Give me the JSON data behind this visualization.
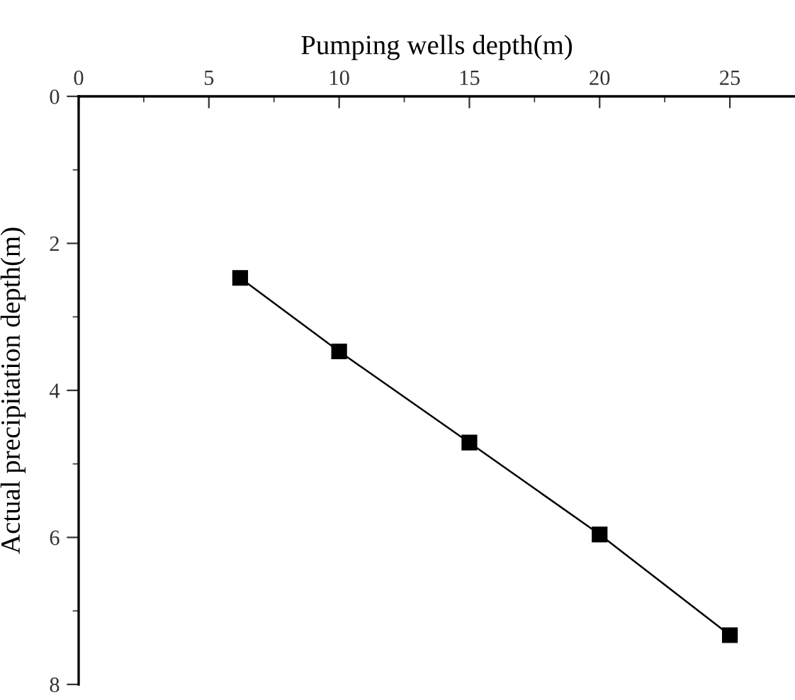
{
  "chart_data": {
    "type": "line",
    "xlabel": "Pumping wells depth(m)",
    "ylabel": "Actual precipitation depth(m)",
    "x": [
      6.2,
      10,
      15,
      20,
      25
    ],
    "series": [
      {
        "color": "#000000",
        "values": [
          2.47,
          3.47,
          4.71,
          5.96,
          7.33
        ]
      }
    ],
    "marker": "square",
    "line_style": "solid",
    "grid": false,
    "xlim": [
      0,
      27.5
    ],
    "ylim": [
      8,
      0
    ],
    "xticks": [
      0,
      {
        "value": 2.5,
        "label": null
      },
      5,
      {
        "value": 7.5,
        "label": null
      },
      10,
      {
        "value": 12.5,
        "label": null
      },
      15,
      {
        "value": 17.5,
        "label": null
      },
      20,
      {
        "value": 22.5,
        "label": null
      },
      25
    ],
    "yticks": [
      0,
      {
        "value": 1,
        "label": null
      },
      2,
      {
        "value": 3,
        "label": null
      },
      4,
      {
        "value": 5,
        "label": null
      },
      6,
      {
        "value": 7,
        "label": null
      },
      8
    ]
  }
}
